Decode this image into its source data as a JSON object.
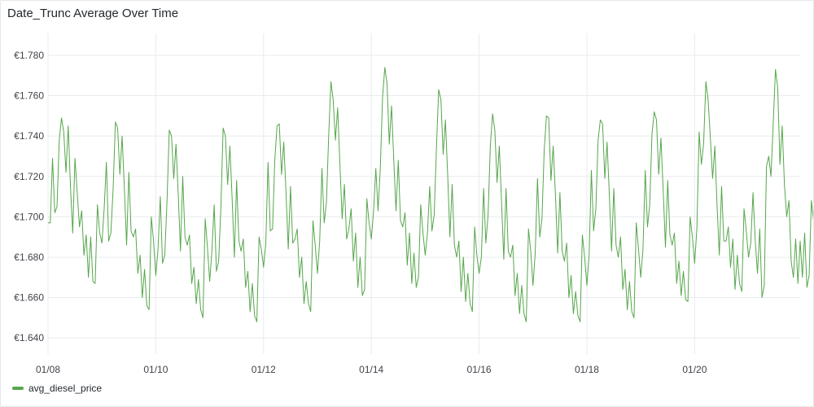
{
  "panel": {
    "title": "Date_Trunc Average Over Time"
  },
  "chart_data": {
    "type": "line",
    "title": "Date_Trunc Average Over Time",
    "xlabel": "",
    "ylabel": "",
    "x_ticks": [
      "01/08",
      "01/10",
      "01/12",
      "01/14",
      "01/16",
      "01/18",
      "01/20"
    ],
    "x_range": [
      "2025-01-08",
      "2025-01-21T23:00"
    ],
    "x_interval_hours": 1,
    "ylim": [
      1.632,
      1.782
    ],
    "y_ticks": [
      1.64,
      1.66,
      1.68,
      1.7,
      1.72,
      1.74,
      1.76,
      1.78
    ],
    "y_tick_labels": [
      "€1.640",
      "€1.660",
      "€1.680",
      "€1.700",
      "€1.720",
      "€1.740",
      "€1.760",
      "€1.780"
    ],
    "grid": true,
    "legend": "bottom-left",
    "series": [
      {
        "name": "avg_diesel_price",
        "color": "#56a64b",
        "values": [
          1.697,
          1.697,
          1.729,
          1.702,
          1.705,
          1.738,
          1.749,
          1.742,
          1.722,
          1.745,
          1.715,
          1.692,
          1.729,
          1.712,
          1.695,
          1.703,
          1.681,
          1.691,
          1.67,
          1.69,
          1.668,
          1.667,
          1.706,
          1.692,
          1.687,
          1.704,
          1.727,
          1.688,
          1.692,
          1.714,
          1.747,
          1.744,
          1.721,
          1.74,
          1.714,
          1.686,
          1.722,
          1.693,
          1.69,
          1.694,
          1.672,
          1.681,
          1.66,
          1.674,
          1.656,
          1.654,
          1.7,
          1.688,
          1.671,
          1.684,
          1.71,
          1.677,
          1.681,
          1.708,
          1.743,
          1.74,
          1.719,
          1.736,
          1.711,
          1.683,
          1.72,
          1.69,
          1.686,
          1.691,
          1.667,
          1.675,
          1.657,
          1.669,
          1.654,
          1.65,
          1.699,
          1.685,
          1.668,
          1.683,
          1.706,
          1.673,
          1.678,
          1.705,
          1.744,
          1.74,
          1.716,
          1.735,
          1.709,
          1.68,
          1.718,
          1.688,
          1.683,
          1.689,
          1.665,
          1.673,
          1.653,
          1.667,
          1.651,
          1.648,
          1.69,
          1.684,
          1.675,
          1.687,
          1.727,
          1.693,
          1.694,
          1.728,
          1.745,
          1.746,
          1.721,
          1.737,
          1.712,
          1.684,
          1.715,
          1.687,
          1.689,
          1.694,
          1.67,
          1.68,
          1.657,
          1.668,
          1.657,
          1.653,
          1.698,
          1.686,
          1.672,
          1.688,
          1.724,
          1.697,
          1.707,
          1.74,
          1.767,
          1.758,
          1.738,
          1.754,
          1.726,
          1.699,
          1.716,
          1.689,
          1.694,
          1.704,
          1.678,
          1.692,
          1.665,
          1.68,
          1.661,
          1.664,
          1.709,
          1.697,
          1.689,
          1.703,
          1.724,
          1.703,
          1.724,
          1.759,
          1.774,
          1.766,
          1.736,
          1.755,
          1.728,
          1.703,
          1.728,
          1.698,
          1.695,
          1.702,
          1.676,
          1.692,
          1.667,
          1.682,
          1.665,
          1.67,
          1.706,
          1.692,
          1.681,
          1.692,
          1.715,
          1.693,
          1.701,
          1.734,
          1.763,
          1.758,
          1.731,
          1.748,
          1.721,
          1.69,
          1.716,
          1.686,
          1.68,
          1.688,
          1.663,
          1.68,
          1.658,
          1.672,
          1.657,
          1.653,
          1.695,
          1.681,
          1.672,
          1.68,
          1.714,
          1.687,
          1.701,
          1.735,
          1.751,
          1.743,
          1.717,
          1.735,
          1.707,
          1.679,
          1.714,
          1.683,
          1.68,
          1.686,
          1.661,
          1.672,
          1.652,
          1.666,
          1.652,
          1.648,
          1.694,
          1.683,
          1.666,
          1.682,
          1.719,
          1.69,
          1.699,
          1.733,
          1.75,
          1.749,
          1.718,
          1.735,
          1.711,
          1.682,
          1.712,
          1.683,
          1.678,
          1.687,
          1.66,
          1.671,
          1.652,
          1.663,
          1.651,
          1.648,
          1.691,
          1.68,
          1.666,
          1.681,
          1.723,
          1.693,
          1.704,
          1.738,
          1.748,
          1.746,
          1.719,
          1.737,
          1.711,
          1.683,
          1.714,
          1.686,
          1.68,
          1.69,
          1.664,
          1.674,
          1.654,
          1.668,
          1.653,
          1.65,
          1.697,
          1.684,
          1.67,
          1.684,
          1.723,
          1.695,
          1.706,
          1.741,
          1.752,
          1.748,
          1.721,
          1.739,
          1.713,
          1.685,
          1.718,
          1.691,
          1.686,
          1.692,
          1.667,
          1.678,
          1.661,
          1.673,
          1.659,
          1.658,
          1.7,
          1.69,
          1.677,
          1.694,
          1.742,
          1.726,
          1.736,
          1.767,
          1.758,
          1.739,
          1.719,
          1.735,
          1.705,
          1.681,
          1.715,
          1.688,
          1.688,
          1.695,
          1.675,
          1.689,
          1.664,
          1.681,
          1.667,
          1.663,
          1.704,
          1.693,
          1.68,
          1.687,
          1.712,
          1.688,
          1.672,
          1.694,
          1.66,
          1.666,
          1.725,
          1.73,
          1.72,
          1.746,
          1.773,
          1.764,
          1.726,
          1.745,
          1.716,
          1.7,
          1.708,
          1.678,
          1.67,
          1.689,
          1.667,
          1.688,
          1.67,
          1.692,
          1.665,
          1.671,
          1.708,
          1.698
        ]
      }
    ]
  }
}
